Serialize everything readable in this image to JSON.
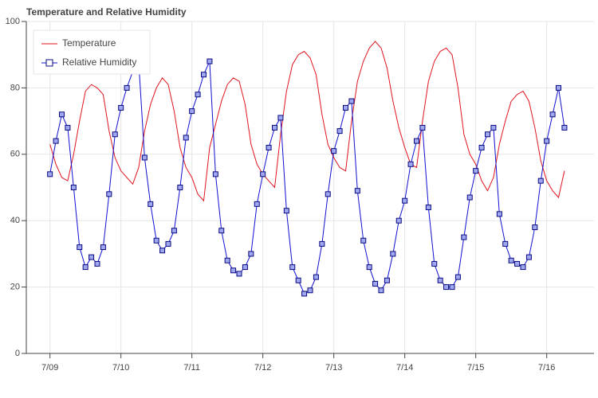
{
  "chart_data": {
    "type": "line",
    "title": "Temperature and Relative Humidity",
    "x": [
      0,
      2,
      4,
      6,
      8,
      10,
      12,
      14,
      16,
      18,
      20,
      22,
      24,
      26,
      28,
      30,
      32,
      34,
      36,
      38,
      40,
      42,
      44,
      46,
      48,
      50,
      52,
      54,
      56,
      58,
      60,
      62,
      64,
      66,
      68,
      70,
      72,
      74,
      76,
      78,
      80,
      82,
      84,
      86,
      88,
      90,
      92,
      94,
      96,
      98,
      100,
      102,
      104,
      106,
      108,
      110,
      112,
      114,
      116,
      118,
      120,
      122,
      124,
      126,
      128,
      130,
      132,
      134,
      136,
      138,
      140,
      142,
      144,
      146,
      148,
      150,
      152,
      154,
      156,
      158,
      160,
      162,
      164,
      166,
      168,
      170,
      172,
      174
    ],
    "series": [
      {
        "name": "Temperature",
        "color": "#e0141e",
        "marker": null,
        "values": [
          63,
          57,
          53,
          52,
          60,
          70,
          79,
          81,
          80,
          78,
          67,
          59,
          55,
          53,
          51,
          56,
          67,
          75,
          80,
          83,
          81,
          73,
          62,
          56,
          53,
          48,
          46,
          62,
          69,
          76,
          81,
          83,
          82,
          75,
          63,
          57,
          54,
          52,
          50,
          66,
          79,
          87,
          90,
          91,
          89,
          84,
          72,
          63,
          59,
          56,
          55,
          70,
          82,
          88,
          92,
          94,
          92,
          86,
          76,
          68,
          62,
          57,
          56,
          70,
          82,
          88,
          91,
          92,
          90,
          80,
          66,
          60,
          57,
          52,
          49,
          53,
          63,
          70,
          76,
          78,
          79,
          76,
          68,
          58,
          52,
          49,
          47,
          55
        ]
      },
      {
        "name": "Relative Humidity",
        "color": "#1010d0",
        "marker": "square",
        "values": [
          54,
          64,
          72,
          68,
          50,
          32,
          26,
          29,
          27,
          32,
          48,
          66,
          74,
          80,
          85,
          88,
          59,
          45,
          34,
          31,
          33,
          37,
          50,
          65,
          73,
          78,
          84,
          88,
          54,
          37,
          28,
          25,
          24,
          26,
          30,
          45,
          54,
          62,
          68,
          71,
          43,
          26,
          22,
          18,
          19,
          23,
          33,
          48,
          61,
          67,
          74,
          76,
          49,
          34,
          26,
          21,
          19,
          22,
          30,
          40,
          46,
          57,
          64,
          68,
          44,
          27,
          22,
          20,
          20,
          23,
          35,
          47,
          55,
          62,
          66,
          68,
          42,
          33,
          28,
          27,
          26,
          29,
          38,
          52,
          64,
          72,
          80,
          68
        ]
      }
    ],
    "xlim": [
      -8,
      184
    ],
    "xticks": [
      {
        "value": 0,
        "label": "7/09"
      },
      {
        "value": 24,
        "label": "7/10"
      },
      {
        "value": 48,
        "label": "7/11"
      },
      {
        "value": 72,
        "label": "7/12"
      },
      {
        "value": 96,
        "label": "7/13"
      },
      {
        "value": 120,
        "label": "7/14"
      },
      {
        "value": 144,
        "label": "7/15"
      },
      {
        "value": 168,
        "label": "7/16"
      }
    ],
    "ylim": [
      0,
      100
    ],
    "yticks": [
      0,
      20,
      40,
      60,
      80,
      100
    ],
    "grid": true,
    "legend": "top-left"
  }
}
